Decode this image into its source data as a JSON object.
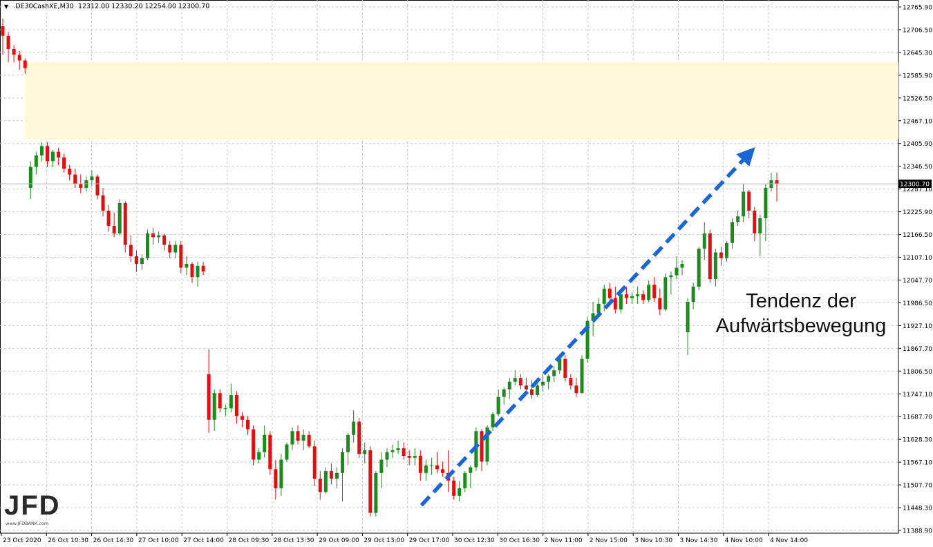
{
  "header": {
    "symbol": ".DE30CashXE,M30",
    "ohlc": "12312.00 12330.20 12254.00 12300.70"
  },
  "annotation": {
    "line1": "Tendenz der",
    "line2": "Aufwärtsbewegung"
  },
  "logo": {
    "text": "JFD",
    "sub": "www.JFDBANK.com"
  },
  "colors": {
    "bull": "#1e8a1e",
    "bear": "#e01010",
    "zone": "#fdf8d8",
    "arrow": "#1a66d6",
    "grid": "#c8c8c8"
  },
  "chart_data": {
    "type": "candlestick",
    "ylim": [
      11388.9,
      12780.0
    ],
    "current_price": "12300.70",
    "y_ticks": [
      "12765.90",
      "12706.50",
      "12645.30",
      "12585.90",
      "12526.50",
      "12467.10",
      "12405.90",
      "12346.50",
      "12287.10",
      "12225.90",
      "12166.50",
      "12107.10",
      "12047.70",
      "11986.50",
      "11927.10",
      "11867.70",
      "11806.50",
      "11747.10",
      "11687.70",
      "11628.30",
      "11567.10",
      "11507.70",
      "11448.30",
      "11388.90"
    ],
    "x_ticks": [
      "23 Oct 2020",
      "26 Oct 10:30",
      "26 Oct 14:30",
      "27 Oct 10:00",
      "27 Oct 14:00",
      "28 Oct 09:30",
      "28 Oct 13:30",
      "29 Oct 09:00",
      "29 Oct 13:00",
      "29 Oct 17:00",
      "30 Oct 12:30",
      "30 Oct 16:30",
      "2 Nov 11:00",
      "2 Nov 15:00",
      "3 Nov 10:30",
      "3 Nov 14:30",
      "4 Nov 10:00",
      "4 Nov 14:00"
    ],
    "zone": {
      "from": 12418,
      "to": 12620
    },
    "trend_arrow": {
      "from": [
        0.537,
        11455
      ],
      "to": [
        0.965,
        12397
      ]
    },
    "candles": [
      [
        12715,
        12735,
        12640,
        12690
      ],
      [
        12690,
        12700,
        12620,
        12655
      ],
      [
        12655,
        12665,
        12620,
        12640
      ],
      [
        12640,
        12650,
        12600,
        12625
      ],
      [
        12625,
        12630,
        12590,
        12605
      ],
      [
        12290,
        12360,
        12260,
        12345
      ],
      [
        12345,
        12385,
        12325,
        12375
      ],
      [
        12375,
        12410,
        12360,
        12400
      ],
      [
        12400,
        12410,
        12345,
        12360
      ],
      [
        12360,
        12390,
        12345,
        12385
      ],
      [
        12385,
        12395,
        12350,
        12370
      ],
      [
        12370,
        12380,
        12330,
        12340
      ],
      [
        12340,
        12350,
        12310,
        12325
      ],
      [
        12325,
        12340,
        12290,
        12300
      ],
      [
        12300,
        12325,
        12275,
        12290
      ],
      [
        12290,
        12320,
        12280,
        12310
      ],
      [
        12310,
        12335,
        12295,
        12320
      ],
      [
        12320,
        12325,
        12260,
        12270
      ],
      [
        12270,
        12290,
        12215,
        12230
      ],
      [
        12230,
        12245,
        12175,
        12190
      ],
      [
        12190,
        12225,
        12160,
        12170
      ],
      [
        12170,
        12260,
        12165,
        12250
      ],
      [
        12250,
        12255,
        12120,
        12140
      ],
      [
        12140,
        12165,
        12095,
        12110
      ],
      [
        12110,
        12125,
        12070,
        12090
      ],
      [
        12090,
        12115,
        12075,
        12105
      ],
      [
        12105,
        12180,
        12100,
        12170
      ],
      [
        12170,
        12185,
        12140,
        12160
      ],
      [
        12160,
        12175,
        12145,
        12165
      ],
      [
        12165,
        12170,
        12125,
        12140
      ],
      [
        12140,
        12150,
        12105,
        12120
      ],
      [
        12120,
        12150,
        12105,
        12140
      ],
      [
        12140,
        12150,
        12065,
        12080
      ],
      [
        12080,
        12110,
        12060,
        12090
      ],
      [
        12090,
        12095,
        12040,
        12055
      ],
      [
        12055,
        12095,
        12030,
        12085
      ],
      [
        12085,
        12095,
        12060,
        12070
      ],
      [
        11800,
        11865,
        11645,
        11680
      ],
      [
        11680,
        11760,
        11650,
        11750
      ],
      [
        11750,
        11760,
        11700,
        11710
      ],
      [
        11710,
        11720,
        11690,
        11710
      ],
      [
        11710,
        11775,
        11700,
        11745
      ],
      [
        11745,
        11755,
        11670,
        11690
      ],
      [
        11690,
        11700,
        11660,
        11680
      ],
      [
        11680,
        11690,
        11640,
        11655
      ],
      [
        11655,
        11665,
        11560,
        11575
      ],
      [
        11575,
        11605,
        11565,
        11595
      ],
      [
        11595,
        11665,
        11580,
        11640
      ],
      [
        11640,
        11650,
        11535,
        11550
      ],
      [
        11550,
        11575,
        11470,
        11500
      ],
      [
        11500,
        11590,
        11480,
        11575
      ],
      [
        11575,
        11620,
        11570,
        11615
      ],
      [
        11615,
        11660,
        11600,
        11650
      ],
      [
        11650,
        11665,
        11615,
        11625
      ],
      [
        11625,
        11655,
        11600,
        11640
      ],
      [
        11640,
        11650,
        11605,
        11610
      ],
      [
        11610,
        11625,
        11505,
        11525
      ],
      [
        11525,
        11545,
        11470,
        11490
      ],
      [
        11490,
        11555,
        11485,
        11545
      ],
      [
        11545,
        11565,
        11510,
        11525
      ],
      [
        11525,
        11555,
        11500,
        11540
      ],
      [
        11540,
        11605,
        11465,
        11595
      ],
      [
        11595,
        11645,
        11560,
        11640
      ],
      [
        11640,
        11705,
        11620,
        11675
      ],
      [
        11675,
        11685,
        11580,
        11590
      ],
      [
        11590,
        11620,
        11565,
        11600
      ],
      [
        11600,
        11610,
        11425,
        11435
      ],
      [
        11435,
        11545,
        11425,
        11540
      ],
      [
        11540,
        11595,
        11500,
        11575
      ],
      [
        11575,
        11605,
        11555,
        11595
      ],
      [
        11595,
        11615,
        11580,
        11600
      ],
      [
        11600,
        11625,
        11590,
        11605
      ],
      [
        11605,
        11620,
        11575,
        11585
      ],
      [
        11585,
        11600,
        11560,
        11580
      ],
      [
        11580,
        11605,
        11560,
        11585
      ],
      [
        11585,
        11600,
        11520,
        11540
      ],
      [
        11540,
        11575,
        11520,
        11560
      ],
      [
        11560,
        11580,
        11535,
        11560
      ],
      [
        11560,
        11595,
        11540,
        11550
      ],
      [
        11550,
        11570,
        11530,
        11540
      ],
      [
        11540,
        11600,
        11490,
        11520
      ],
      [
        11520,
        11530,
        11470,
        11480
      ],
      [
        11480,
        11520,
        11465,
        11500
      ],
      [
        11500,
        11545,
        11490,
        11540
      ],
      [
        11540,
        11560,
        11500,
        11555
      ],
      [
        11555,
        11660,
        11545,
        11650
      ],
      [
        11650,
        11655,
        11545,
        11570
      ],
      [
        11570,
        11665,
        11560,
        11660
      ],
      [
        11660,
        11700,
        11650,
        11695
      ],
      [
        11695,
        11760,
        11690,
        11740
      ],
      [
        11740,
        11765,
        11720,
        11760
      ],
      [
        11760,
        11790,
        11735,
        11780
      ],
      [
        11780,
        11810,
        11770,
        11790
      ],
      [
        11790,
        11800,
        11760,
        11770
      ],
      [
        11770,
        11790,
        11750,
        11760
      ],
      [
        11760,
        11785,
        11735,
        11745
      ],
      [
        11745,
        11775,
        11740,
        11770
      ],
      [
        11770,
        11800,
        11755,
        11780
      ],
      [
        11780,
        11800,
        11760,
        11795
      ],
      [
        11795,
        11820,
        11780,
        11810
      ],
      [
        11810,
        11845,
        11800,
        11840
      ],
      [
        11840,
        11850,
        11780,
        11790
      ],
      [
        11790,
        11800,
        11760,
        11770
      ],
      [
        11770,
        11790,
        11740,
        11750
      ],
      [
        11750,
        11850,
        11750,
        11840
      ],
      [
        11840,
        11950,
        11830,
        11940
      ],
      [
        11940,
        11990,
        11900,
        11960
      ],
      [
        11960,
        12000,
        11950,
        11985
      ],
      [
        11985,
        12035,
        11965,
        12025
      ],
      [
        12025,
        12040,
        11985,
        12000
      ],
      [
        12000,
        12030,
        11960,
        11970
      ],
      [
        11970,
        12020,
        11960,
        12010
      ],
      [
        12010,
        12030,
        11985,
        12000
      ],
      [
        12000,
        12015,
        11985,
        12005
      ],
      [
        12005,
        12030,
        11985,
        12010
      ],
      [
        12010,
        12020,
        11985,
        11995
      ],
      [
        11995,
        12045,
        11990,
        12035
      ],
      [
        12035,
        12055,
        11990,
        12000
      ],
      [
        12000,
        12025,
        11955,
        11970
      ],
      [
        11970,
        12065,
        11965,
        12055
      ],
      [
        12055,
        12070,
        12010,
        12060
      ],
      [
        12060,
        12110,
        12050,
        12080
      ],
      [
        12080,
        12100,
        12060,
        12090
      ],
      [
        11910,
        12000,
        11850,
        11990
      ],
      [
        11990,
        12040,
        11970,
        12030
      ],
      [
        12030,
        12135,
        12020,
        12130
      ],
      [
        12130,
        12200,
        12100,
        12170
      ],
      [
        12170,
        12180,
        12040,
        12050
      ],
      [
        12050,
        12130,
        12030,
        12120
      ],
      [
        12120,
        12135,
        12085,
        12105
      ],
      [
        12105,
        12150,
        12095,
        12145
      ],
      [
        12145,
        12210,
        12130,
        12200
      ],
      [
        12200,
        12230,
        12190,
        12215
      ],
      [
        12215,
        12300,
        12200,
        12280
      ],
      [
        12280,
        12285,
        12210,
        12230
      ],
      [
        12230,
        12240,
        12150,
        12170
      ],
      [
        12170,
        12220,
        12110,
        12210
      ],
      [
        12210,
        12300,
        12150,
        12290
      ],
      [
        12290,
        12330,
        12280,
        12310
      ],
      [
        12310,
        12330,
        12254,
        12300.7
      ]
    ]
  }
}
